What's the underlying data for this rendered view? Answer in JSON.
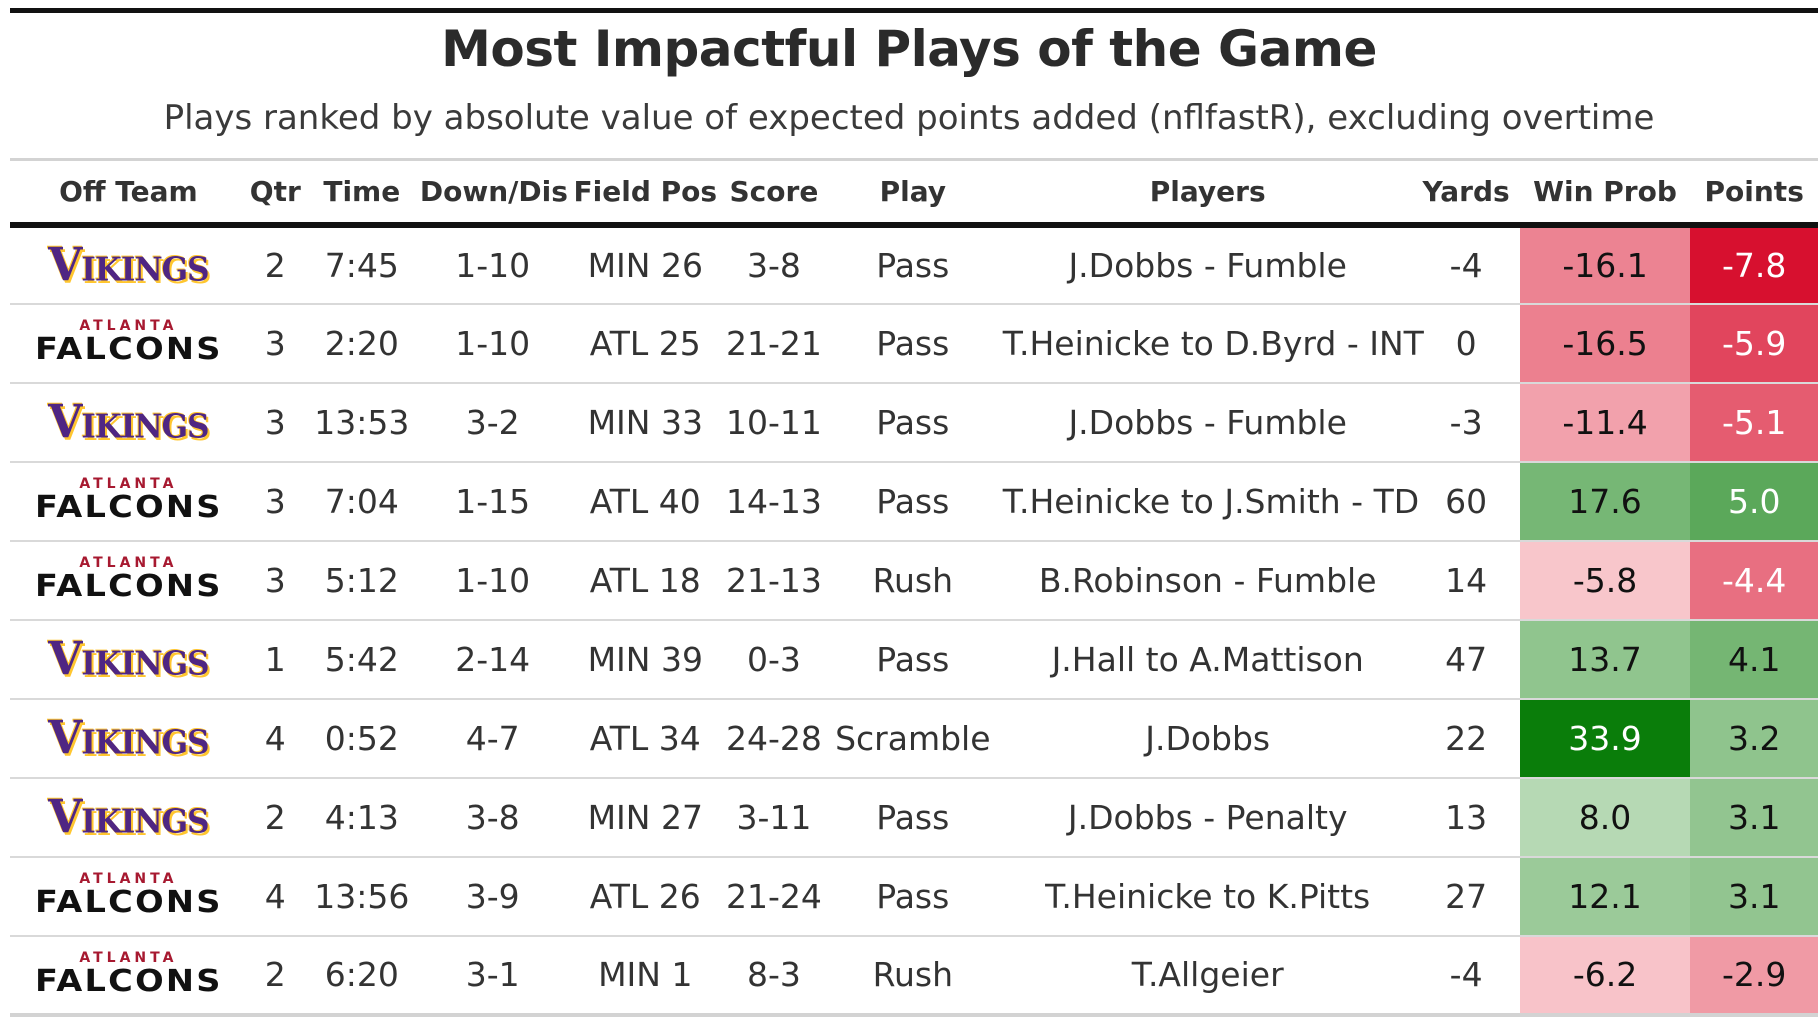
{
  "title": "Most Impactful Plays of the Game",
  "subtitle": "Plays ranked by absolute value of expected points added (nflfastR), excluding overtime",
  "columns": [
    "Off Team",
    "Qtr",
    "Time",
    "Down/Dis",
    "Field Pos",
    "Score",
    "Play",
    "Players",
    "Yards",
    "Win Prob",
    "Points"
  ],
  "logos": {
    "vikings": "Vikings",
    "falcons_top": "ATLANTA",
    "falcons_bottom": "FALCONS"
  },
  "colors": {
    "vikings_purple": "#4f2683",
    "vikings_gold": "#ffc62f",
    "falcons_red": "#a71930",
    "negative_strong": "#d7102f",
    "positive_strong": "#0a7d0a"
  },
  "chart_data": {
    "type": "table",
    "title": "Most Impactful Plays of the Game",
    "subtitle": "Plays ranked by absolute value of expected points added (nflfastR), excluding overtime",
    "columns": [
      "Off Team",
      "Qtr",
      "Time",
      "Down/Dis",
      "Field Pos",
      "Score",
      "Play",
      "Players",
      "Yards",
      "Win Prob",
      "Points"
    ],
    "rows": [
      {
        "team": "vikings",
        "qtr": "2",
        "time": "7:45",
        "down": "1-10",
        "field": "MIN 26",
        "score": "3-8",
        "play": "Pass",
        "players": "J.Dobbs - Fumble",
        "yards": "-4",
        "win_prob": -16.1,
        "win_prob_label": "-16.1",
        "points": -7.8,
        "points_label": "-7.8"
      },
      {
        "team": "falcons",
        "qtr": "3",
        "time": "2:20",
        "down": "1-10",
        "field": "ATL 25",
        "score": "21-21",
        "play": "Pass",
        "players": "T.Heinicke to D.Byrd - INT",
        "yards": "0",
        "win_prob": -16.5,
        "win_prob_label": "-16.5",
        "points": -5.9,
        "points_label": "-5.9"
      },
      {
        "team": "vikings",
        "qtr": "3",
        "time": "13:53",
        "down": "3-2",
        "field": "MIN 33",
        "score": "10-11",
        "play": "Pass",
        "players": "J.Dobbs - Fumble",
        "yards": "-3",
        "win_prob": -11.4,
        "win_prob_label": "-11.4",
        "points": -5.1,
        "points_label": "-5.1"
      },
      {
        "team": "falcons",
        "qtr": "3",
        "time": "7:04",
        "down": "1-15",
        "field": "ATL 40",
        "score": "14-13",
        "play": "Pass",
        "players": "T.Heinicke to J.Smith - TD",
        "yards": "60",
        "win_prob": 17.6,
        "win_prob_label": "17.6",
        "points": 5.0,
        "points_label": "5.0"
      },
      {
        "team": "falcons",
        "qtr": "3",
        "time": "5:12",
        "down": "1-10",
        "field": "ATL 18",
        "score": "21-13",
        "play": "Rush",
        "players": "B.Robinson - Fumble",
        "yards": "14",
        "win_prob": -5.8,
        "win_prob_label": "-5.8",
        "points": -4.4,
        "points_label": "-4.4"
      },
      {
        "team": "vikings",
        "qtr": "1",
        "time": "5:42",
        "down": "2-14",
        "field": "MIN 39",
        "score": "0-3",
        "play": "Pass",
        "players": "J.Hall to A.Mattison",
        "yards": "47",
        "win_prob": 13.7,
        "win_prob_label": "13.7",
        "points": 4.1,
        "points_label": "4.1"
      },
      {
        "team": "vikings",
        "qtr": "4",
        "time": "0:52",
        "down": "4-7",
        "field": "ATL 34",
        "score": "24-28",
        "play": "Scramble",
        "players": "J.Dobbs",
        "yards": "22",
        "win_prob": 33.9,
        "win_prob_label": "33.9",
        "points": 3.2,
        "points_label": "3.2"
      },
      {
        "team": "vikings",
        "qtr": "2",
        "time": "4:13",
        "down": "3-8",
        "field": "MIN 27",
        "score": "3-11",
        "play": "Pass",
        "players": "J.Dobbs - Penalty",
        "yards": "13",
        "win_prob": 8.0,
        "win_prob_label": "8.0",
        "points": 3.1,
        "points_label": "3.1"
      },
      {
        "team": "falcons",
        "qtr": "4",
        "time": "13:56",
        "down": "3-9",
        "field": "ATL 26",
        "score": "21-24",
        "play": "Pass",
        "players": "T.Heinicke to K.Pitts",
        "yards": "27",
        "win_prob": 12.1,
        "win_prob_label": "12.1",
        "points": 3.1,
        "points_label": "3.1"
      },
      {
        "team": "falcons",
        "qtr": "2",
        "time": "6:20",
        "down": "3-1",
        "field": "MIN 1",
        "score": "8-3",
        "play": "Rush",
        "players": "T.Allgeier",
        "yards": "-4",
        "win_prob": -6.2,
        "win_prob_label": "-6.2",
        "points": -2.9,
        "points_label": "-2.9"
      }
    ]
  }
}
